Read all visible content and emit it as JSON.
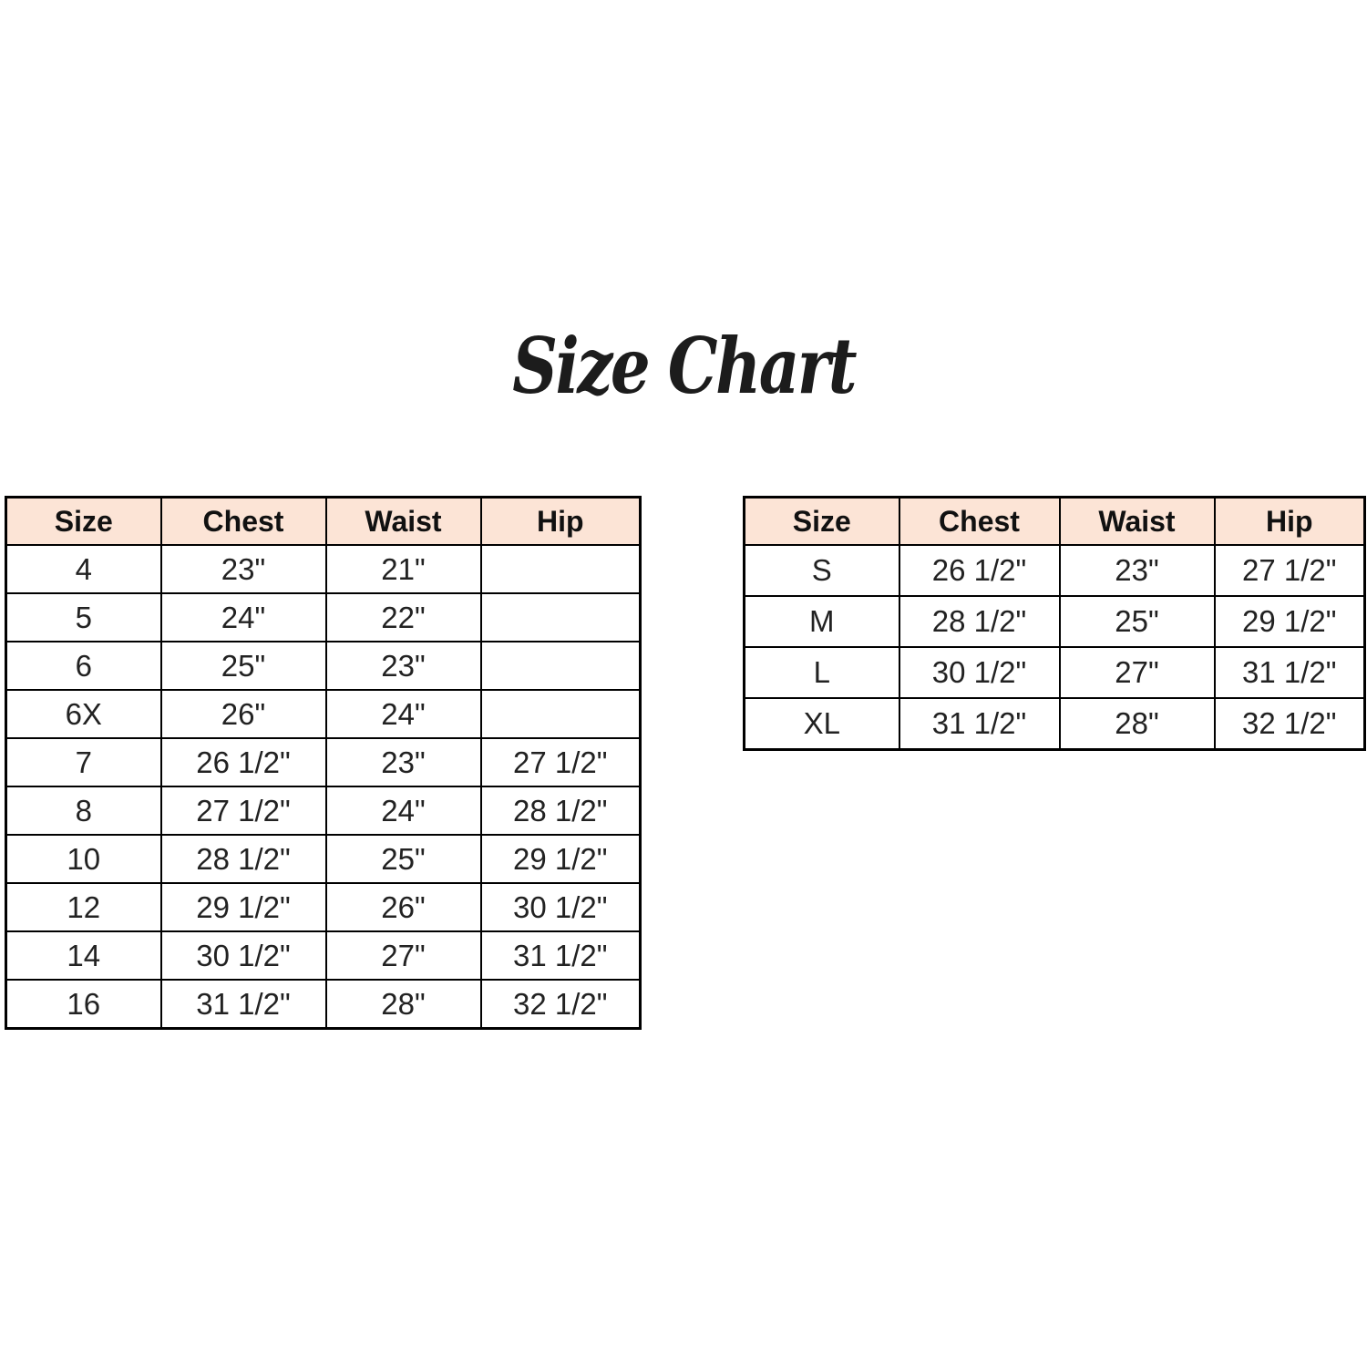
{
  "title": "Size Chart",
  "colors": {
    "background": "#ffffff",
    "header_fill": "#fce4d6",
    "border": "#000000",
    "text": "#1a1a1a"
  },
  "left_table": {
    "columns": [
      "Size",
      "Chest",
      "Waist",
      "Hip"
    ],
    "rows": [
      [
        "4",
        "23\"",
        "21\"",
        ""
      ],
      [
        "5",
        "24\"",
        "22\"",
        ""
      ],
      [
        "6",
        "25\"",
        "23\"",
        ""
      ],
      [
        "6X",
        "26\"",
        "24\"",
        ""
      ],
      [
        "7",
        "26 1/2\"",
        "23\"",
        "27 1/2\""
      ],
      [
        "8",
        "27 1/2\"",
        "24\"",
        "28 1/2\""
      ],
      [
        "10",
        "28 1/2\"",
        "25\"",
        "29 1/2\""
      ],
      [
        "12",
        "29 1/2\"",
        "26\"",
        "30 1/2\""
      ],
      [
        "14",
        "30 1/2\"",
        "27\"",
        "31 1/2\""
      ],
      [
        "16",
        "31 1/2\"",
        "28\"",
        "32 1/2\""
      ]
    ]
  },
  "right_table": {
    "columns": [
      "Size",
      "Chest",
      "Waist",
      "Hip"
    ],
    "rows": [
      [
        "S",
        "26 1/2\"",
        "23\"",
        "27 1/2\""
      ],
      [
        "M",
        "28 1/2\"",
        "25\"",
        "29 1/2\""
      ],
      [
        "L",
        "30 1/2\"",
        "27\"",
        "31 1/2\""
      ],
      [
        "XL",
        "31 1/2\"",
        "28\"",
        "32 1/2\""
      ]
    ]
  },
  "chart_data": [
    {
      "type": "table",
      "title": "Size Chart",
      "columns": [
        "Size",
        "Chest",
        "Waist",
        "Hip"
      ],
      "rows": [
        [
          "4",
          "23\"",
          "21\"",
          ""
        ],
        [
          "5",
          "24\"",
          "22\"",
          ""
        ],
        [
          "6",
          "25\"",
          "23\"",
          ""
        ],
        [
          "6X",
          "26\"",
          "24\"",
          ""
        ],
        [
          "7",
          "26 1/2\"",
          "23\"",
          "27 1/2\""
        ],
        [
          "8",
          "27 1/2\"",
          "24\"",
          "28 1/2\""
        ],
        [
          "10",
          "28 1/2\"",
          "25\"",
          "29 1/2\""
        ],
        [
          "12",
          "29 1/2\"",
          "26\"",
          "30 1/2\""
        ],
        [
          "14",
          "30 1/2\"",
          "27\"",
          "31 1/2\""
        ],
        [
          "16",
          "31 1/2\"",
          "28\"",
          "32 1/2\""
        ]
      ]
    },
    {
      "type": "table",
      "title": "Size Chart",
      "columns": [
        "Size",
        "Chest",
        "Waist",
        "Hip"
      ],
      "rows": [
        [
          "S",
          "26 1/2\"",
          "23\"",
          "27 1/2\""
        ],
        [
          "M",
          "28 1/2\"",
          "25\"",
          "29 1/2\""
        ],
        [
          "L",
          "30 1/2\"",
          "27\"",
          "31 1/2\""
        ],
        [
          "XL",
          "31 1/2\"",
          "28\"",
          "32 1/2\""
        ]
      ]
    }
  ]
}
